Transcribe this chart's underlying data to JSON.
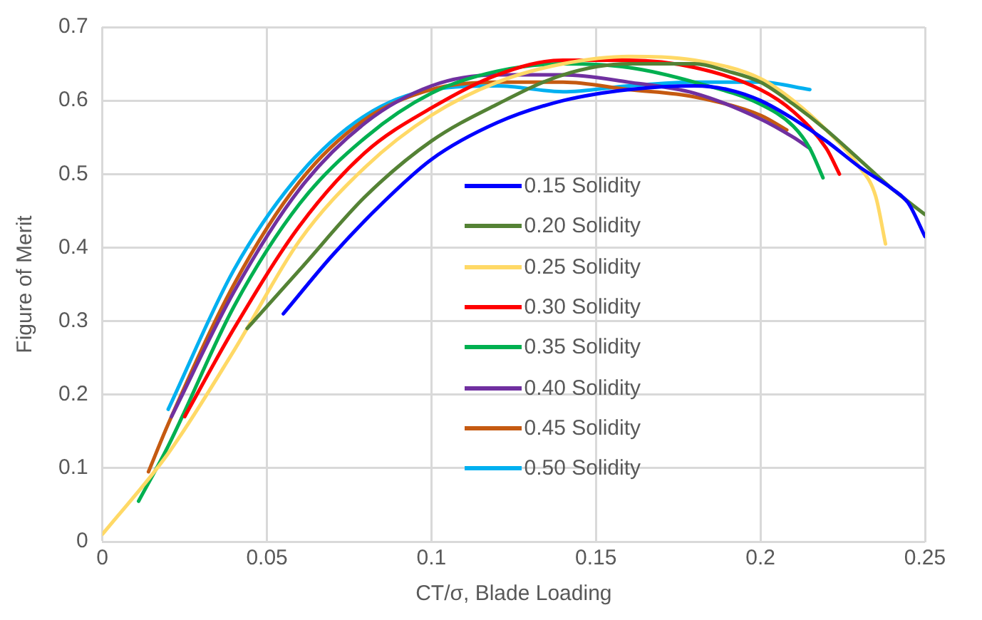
{
  "chart_data": {
    "type": "line",
    "xlabel": "CT/σ, Blade Loading",
    "ylabel": "Figure of Merit",
    "xlim": [
      0,
      0.25
    ],
    "xticks": [
      0,
      0.05,
      0.1,
      0.15,
      0.2,
      0.25
    ],
    "ylim": [
      0,
      0.7
    ],
    "yticks": [
      0,
      0.1,
      0.2,
      0.3,
      0.4,
      0.5,
      0.6,
      0.7
    ],
    "grid": true,
    "legend": "right",
    "marker": "none",
    "line_style": "solid",
    "series": [
      {
        "name": "0.15 Solidity",
        "color": "#0000ff",
        "x": [
          0.055,
          0.07,
          0.085,
          0.1,
          0.12,
          0.14,
          0.16,
          0.18,
          0.19,
          0.2,
          0.21,
          0.22,
          0.23,
          0.24,
          0.245,
          0.25
        ],
        "values": [
          0.31,
          0.39,
          0.46,
          0.52,
          0.57,
          0.6,
          0.615,
          0.62,
          0.615,
          0.6,
          0.575,
          0.545,
          0.51,
          0.48,
          0.46,
          0.415
        ]
      },
      {
        "name": "0.20 Solidity",
        "color": "#548235",
        "x": [
          0.044,
          0.06,
          0.08,
          0.1,
          0.12,
          0.14,
          0.16,
          0.18,
          0.19,
          0.2,
          0.21,
          0.22,
          0.23,
          0.24,
          0.25
        ],
        "values": [
          0.29,
          0.37,
          0.47,
          0.545,
          0.595,
          0.635,
          0.65,
          0.65,
          0.64,
          0.625,
          0.595,
          0.56,
          0.52,
          0.48,
          0.445
        ]
      },
      {
        "name": "0.25 Solidity",
        "color": "#ffd966",
        "x": [
          0,
          0.02,
          0.04,
          0.06,
          0.08,
          0.1,
          0.12,
          0.14,
          0.16,
          0.18,
          0.2,
          0.21,
          0.22,
          0.23,
          0.235,
          0.238
        ],
        "values": [
          0.01,
          0.12,
          0.26,
          0.41,
          0.51,
          0.58,
          0.625,
          0.65,
          0.66,
          0.655,
          0.63,
          0.6,
          0.56,
          0.51,
          0.47,
          0.405
        ]
      },
      {
        "name": "0.30 Solidity",
        "color": "#ff0000",
        "x": [
          0.025,
          0.04,
          0.06,
          0.08,
          0.1,
          0.12,
          0.14,
          0.16,
          0.18,
          0.2,
          0.21,
          0.22,
          0.224
        ],
        "values": [
          0.17,
          0.29,
          0.43,
          0.53,
          0.59,
          0.635,
          0.655,
          0.655,
          0.645,
          0.615,
          0.585,
          0.535,
          0.5
        ]
      },
      {
        "name": "0.35 Solidity",
        "color": "#00b050",
        "x": [
          0.011,
          0.02,
          0.04,
          0.06,
          0.08,
          0.1,
          0.12,
          0.14,
          0.16,
          0.18,
          0.2,
          0.21,
          0.215,
          0.219
        ],
        "values": [
          0.055,
          0.13,
          0.32,
          0.46,
          0.55,
          0.61,
          0.64,
          0.65,
          0.645,
          0.625,
          0.595,
          0.565,
          0.535,
          0.495
        ]
      },
      {
        "name": "0.40 Solidity",
        "color": "#7030a0",
        "x": [
          0.021,
          0.04,
          0.06,
          0.08,
          0.1,
          0.12,
          0.14,
          0.16,
          0.18,
          0.2,
          0.21,
          0.215
        ],
        "values": [
          0.17,
          0.34,
          0.48,
          0.57,
          0.62,
          0.635,
          0.635,
          0.625,
          0.61,
          0.575,
          0.55,
          0.535
        ]
      },
      {
        "name": "0.45 Solidity",
        "color": "#c55a11",
        "x": [
          0.014,
          0.02,
          0.04,
          0.06,
          0.08,
          0.1,
          0.12,
          0.14,
          0.16,
          0.18,
          0.2,
          0.208
        ],
        "values": [
          0.095,
          0.16,
          0.35,
          0.49,
          0.575,
          0.615,
          0.625,
          0.625,
          0.615,
          0.605,
          0.58,
          0.56
        ]
      },
      {
        "name": "0.50 Solidity",
        "color": "#00b0f0",
        "x": [
          0.02,
          0.04,
          0.06,
          0.08,
          0.1,
          0.12,
          0.14,
          0.16,
          0.18,
          0.2,
          0.215
        ],
        "values": [
          0.18,
          0.37,
          0.5,
          0.58,
          0.615,
          0.62,
          0.612,
          0.62,
          0.625,
          0.625,
          0.615
        ]
      }
    ]
  }
}
